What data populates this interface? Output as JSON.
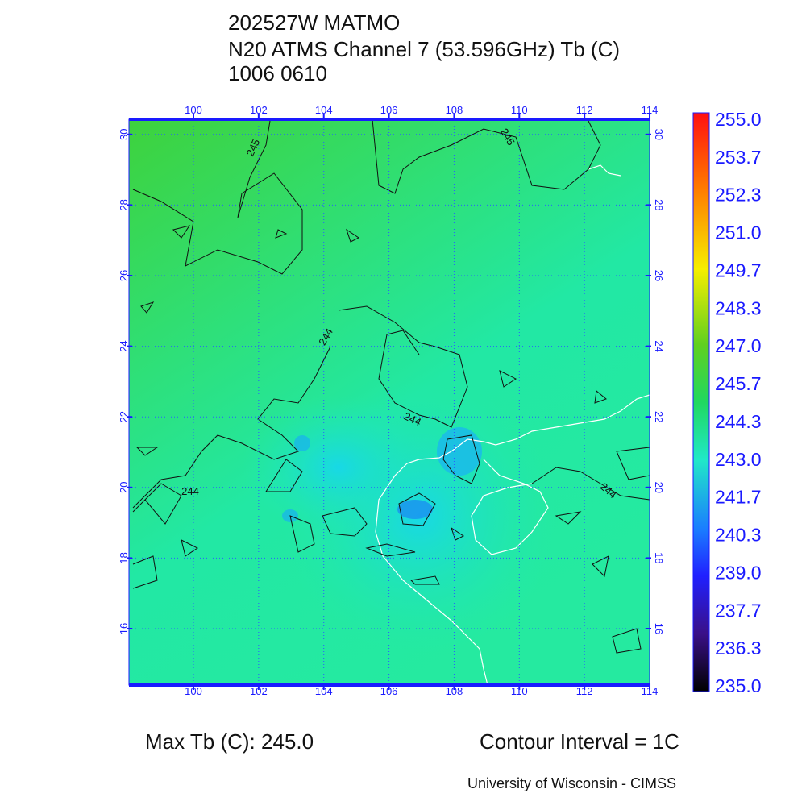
{
  "header": {
    "lines": [
      "202527W MATMO",
      "N20 ATMS Channel 7 (53.596GHz) Tb (C)",
      "1006 0610"
    ]
  },
  "map": {
    "lon_ticks": [
      100,
      102,
      104,
      106,
      108,
      110,
      112,
      114
    ],
    "lat_ticks": [
      16,
      18,
      20,
      22,
      24,
      26,
      28,
      30
    ],
    "contour_labels": [
      "245",
      "245",
      "244",
      "244",
      "244",
      "244"
    ]
  },
  "colorbar": {
    "labels": [
      "255.0",
      "253.7",
      "252.3",
      "251.0",
      "249.7",
      "248.3",
      "247.0",
      "245.7",
      "244.3",
      "243.0",
      "241.7",
      "240.3",
      "239.0",
      "237.7",
      "236.3",
      "235.0"
    ]
  },
  "footer": {
    "max_tb": "Max Tb (C): 245.0",
    "contour_interval": "Contour Interval = 1C",
    "credit": "University of Wisconsin - CIMSS"
  }
}
